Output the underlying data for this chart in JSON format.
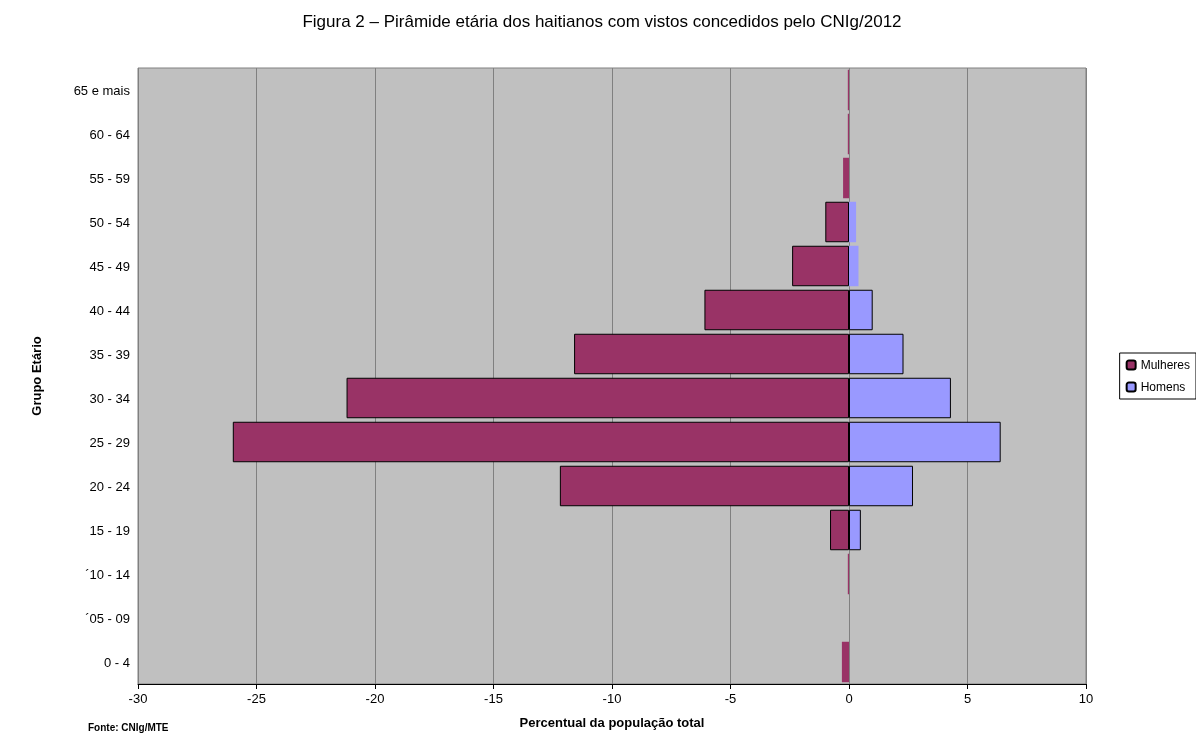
{
  "chart_data": {
    "type": "bar",
    "orientation": "horizontal",
    "stacked": true,
    "title": "Figura 2 – Pirâmide etária dos haitianos com vistos concedidos pelo CNIg/2012",
    "xlabel": "Percentual da população total",
    "ylabel": "Grupo Etário",
    "annotations": [
      "Fonte: CNIg/MTE"
    ],
    "categories": [
      "65 e mais",
      "60 - 64",
      "55 - 59",
      "50 - 54",
      "45 - 49",
      "40 - 44",
      "35 - 39",
      "30 - 34",
      "25 - 29",
      "20 - 24",
      "15 - 19",
      "´10 - 14",
      "´05 - 09",
      "0 - 4"
    ],
    "series": [
      {
        "name": "Mulheres",
        "color": "#993366",
        "values": [
          -0.05,
          -0.05,
          -0.25,
          -1.0,
          -2.4,
          -6.1,
          -11.6,
          -21.2,
          -26.0,
          -12.2,
          -0.8,
          -0.05,
          0,
          -0.3
        ]
      },
      {
        "name": "Homens",
        "color": "#9999ff",
        "values": [
          null,
          0,
          0,
          0.3,
          0.4,
          1.0,
          2.3,
          4.3,
          6.4,
          2.7,
          0.5,
          null,
          0,
          0
        ]
      }
    ],
    "xlim": [
      -30,
      10
    ],
    "xticks": [
      -30,
      -25,
      -20,
      -15,
      -10,
      -5,
      0,
      5,
      10
    ],
    "grid": "x",
    "legend": "right"
  }
}
